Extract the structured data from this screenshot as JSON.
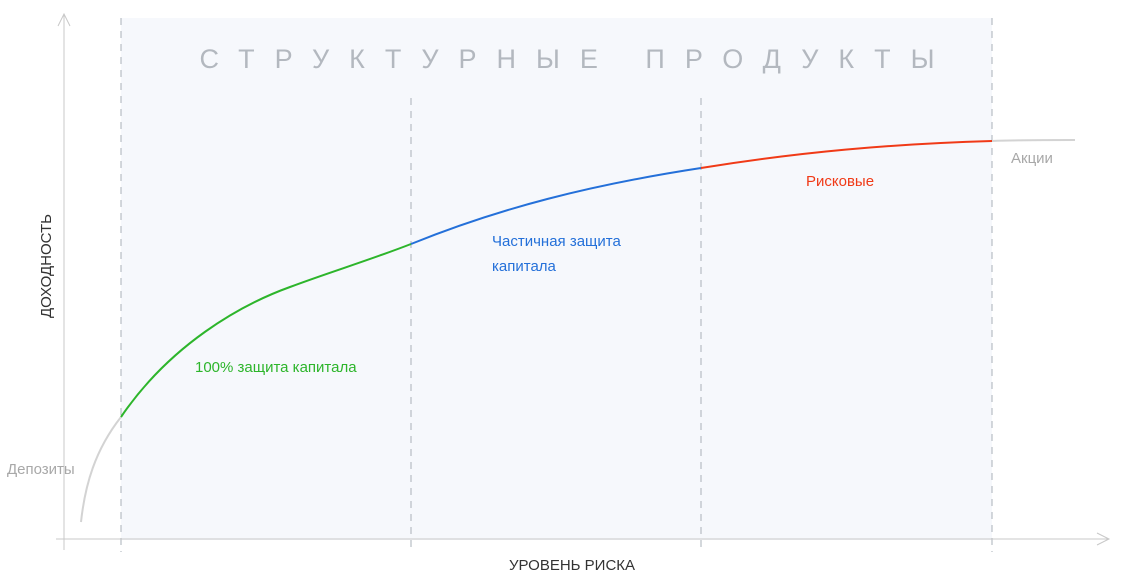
{
  "diagram": {
    "zone_title": "СТРУКТУРНЫЕ ПРОДУКТЫ",
    "y_axis_label": "ДОХОДНОСТЬ",
    "x_axis_label": "УРОВЕНЬ РИСКА",
    "segments": [
      {
        "label": "100% защита капитала",
        "color": "#2db52b"
      },
      {
        "label_line1": "Частичная защита",
        "label_line2": "капитала",
        "color": "#2470d9"
      },
      {
        "label": "Рисковые",
        "color": "#f03a17"
      }
    ],
    "endpoints": {
      "start_label": "Депозиты",
      "end_label": "Акции",
      "color": "#d3d3d3"
    },
    "colors": {
      "zone_fill": "#f6f8fc",
      "axis": "#c8c8c8",
      "divider": "#aab0b8"
    }
  }
}
